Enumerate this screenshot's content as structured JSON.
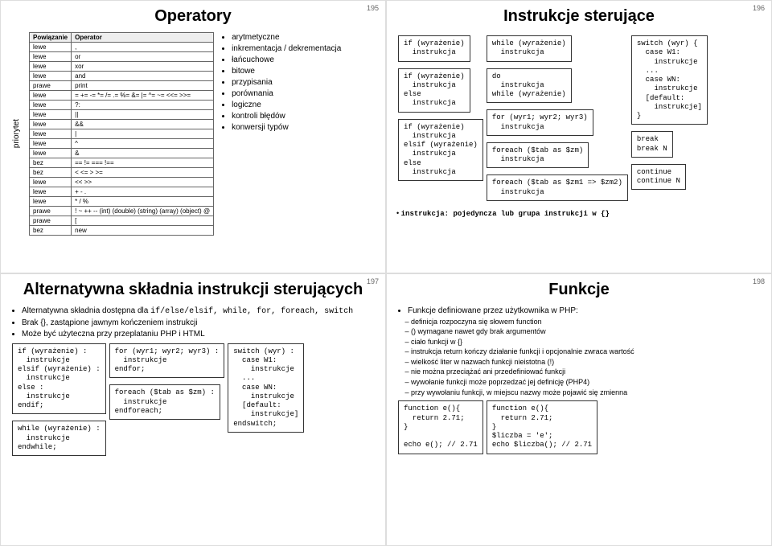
{
  "slide195": {
    "num": "195",
    "title": "Operatory",
    "prio": "priorytet",
    "headers": [
      "Powiązanie",
      "Operator"
    ],
    "rows": [
      [
        "lewe",
        ","
      ],
      [
        "lewe",
        "or"
      ],
      [
        "lewe",
        "xor"
      ],
      [
        "lewe",
        "and"
      ],
      [
        "prawe",
        "print"
      ],
      [
        "lewe",
        "= += -= *= /= .= %= &= |= ^= ~= <<= >>="
      ],
      [
        "lewe",
        "?:"
      ],
      [
        "lewe",
        "||"
      ],
      [
        "lewe",
        "&&"
      ],
      [
        "lewe",
        "|"
      ],
      [
        "lewe",
        "^"
      ],
      [
        "lewe",
        "&"
      ],
      [
        "bez",
        "== != === !=="
      ],
      [
        "bez",
        "< <= > >="
      ],
      [
        "lewe",
        "<< >>"
      ],
      [
        "lewe",
        "+ - ."
      ],
      [
        "lewe",
        "* / %"
      ],
      [
        "prawe",
        "! ~ ++ -- (int) (double) (string) (array) (object) @"
      ],
      [
        "prawe",
        "["
      ],
      [
        "bez",
        "new"
      ]
    ],
    "bullets": [
      "arytmetyczne",
      "inkrementacja / dekrementacja",
      "łańcuchowe",
      "bitowe",
      "przypisania",
      "porównania",
      "logiczne",
      "kontroli błędów",
      "konwersji typów"
    ]
  },
  "slide196": {
    "num": "196",
    "title": "Instrukcje sterujące",
    "box1": "if (wyrażenie)\n  instrukcja",
    "box2": "if (wyrażenie)\n  instrukcja\nelse\n  instrukcja",
    "box3": "if (wyrażenie)\n  instrukcja\nelsif (wyrażenie)\n  instrukcja\nelse\n  instrukcja",
    "box4": "while (wyrażenie)\n  instrukcja",
    "box5": "do\n  instrukcja\nwhile (wyrażenie)",
    "box6": "for (wyr1; wyr2; wyr3)\n  instrukcja",
    "box7": "foreach ($tab as $zm)\n  instrukcja",
    "box8": "foreach ($tab as $zm1 => $zm2)\n  instrukcja",
    "box9": "switch (wyr) {\n  case W1:\n    instrukcje\n  ...\n  case WN:\n    instrukcje\n  [default:\n    instrukcje]\n}",
    "box10": "break\nbreak N",
    "box11": "continue\ncontinue N",
    "note": "instrukcja: pojedyncza lub grupa instrukcji w {}"
  },
  "slide197": {
    "num": "197",
    "title": "Alternatywna składnia instrukcji sterujących",
    "b1a": "Alternatywna składnia dostępna dla ",
    "b1b": "if/else/elsif, while, for, foreach, switch",
    "b2": "Brak {}, zastąpione jawnym kończeniem instrukcji",
    "b3": "Może być użyteczna przy przeplataniu PHP i HTML",
    "box1": "if (wyrażenie) :\n  instrukcje\nelsif (wyrażenie) :\n  instrukcje\nelse :\n  instrukcje\nendif;",
    "box2": "while (wyrażenie) :\n  instrukcje\nendwhile;",
    "box3": "for (wyr1; wyr2; wyr3) :\n  instrukcje\nendfor;",
    "box4": "foreach ($tab as $zm) :\n  instrukcje\nendforeach;",
    "box5": "switch (wyr) :\n  case W1:\n    instrukcje\n  ...\n  case WN:\n    instrukcje\n  [default:\n    instrukcje]\nendswitch;"
  },
  "slide198": {
    "num": "198",
    "title": "Funkcje",
    "b1": "Funkcje definiowane przez użytkownika w PHP:",
    "sub": [
      "definicja rozpoczyna się słowem function",
      "() wymagane nawet gdy brak argumentów",
      "ciało funkcji w {}",
      "instrukcja return kończy działanie funkcji i opcjonalnie zwraca wartość",
      "wielkość liter w nazwach funkcji nieistotna (!)",
      "nie można przeciążać ani przedefiniować funkcji",
      "wywołanie funkcji może poprzedzać jej definicję (PHP4)",
      "przy wywołaniu funkcji, w miejscu nazwy może pojawić się zmienna"
    ],
    "box1": "function e(){\n  return 2.71;\n}\n\necho e(); // 2.71",
    "box2": "function e(){\n  return 2.71;\n}\n$liczba = 'e';\necho $liczba(); // 2.71"
  }
}
